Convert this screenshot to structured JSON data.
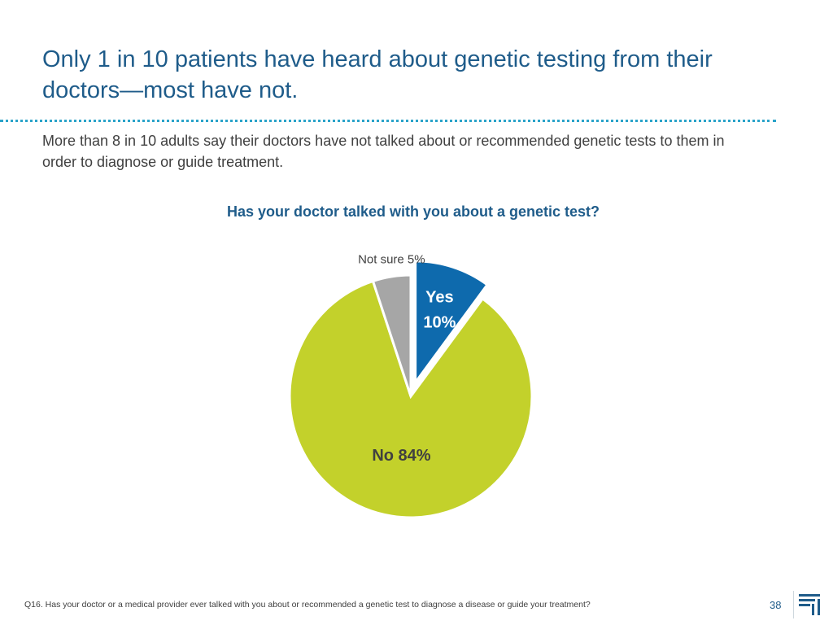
{
  "slide": {
    "title": "Only 1 in 10 patients have heard about genetic testing from their doctors—most have not.",
    "subtitle": "More than 8 in 10 adults say their doctors have not talked about or recommended genetic tests to them in order to diagnose or guide treatment.",
    "footnote": "Q16. Has your doctor or a medical provider ever talked with you about or recommended a genetic test to diagnose a disease or guide your treatment?",
    "page_number": "38",
    "logo_icon": "company-logo-icon"
  },
  "chart_data": {
    "type": "pie",
    "title": "Has your doctor talked with you about a genetic test?",
    "slices": [
      {
        "label": "Yes",
        "value": 10,
        "value_label": "10%",
        "color": "#0e6aad",
        "exploded": true
      },
      {
        "label": "No",
        "value": 84,
        "value_label": "84%",
        "color": "#c3d12b",
        "exploded": false
      },
      {
        "label": "Not sure",
        "value": 5,
        "value_label": "5%",
        "color": "#a6a6a6",
        "exploded": false
      }
    ]
  },
  "colors": {
    "accent": "#1f5c8a",
    "divider": "#2aa3c9"
  }
}
